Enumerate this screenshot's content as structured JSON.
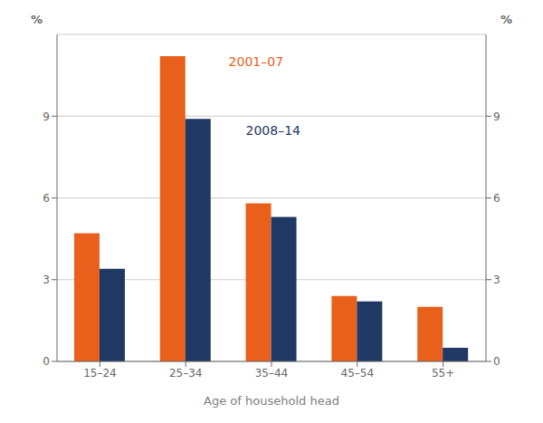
{
  "chart_data": {
    "type": "bar",
    "categories": [
      "15–24",
      "25–34",
      "35–44",
      "45–54",
      "55+"
    ],
    "series": [
      {
        "name": "2001–07",
        "color": "#e8601c",
        "values": [
          4.7,
          11.2,
          5.8,
          2.4,
          2.0
        ]
      },
      {
        "name": "2008–14",
        "color": "#1f3864",
        "values": [
          3.4,
          8.9,
          5.3,
          2.2,
          0.5
        ]
      }
    ],
    "xlabel": "Age of household head",
    "ylabel": "%",
    "y2label": "%",
    "ylim": [
      0,
      12
    ],
    "yticks": [
      0,
      3,
      6,
      9
    ],
    "y2lim": [
      0,
      12
    ],
    "y2ticks": [
      0,
      3,
      6,
      9
    ],
    "grid": true,
    "annotations": [
      {
        "text": "2001–07",
        "color": "#e8601c"
      },
      {
        "text": "2008–14",
        "color": "#1f3864"
      }
    ]
  }
}
